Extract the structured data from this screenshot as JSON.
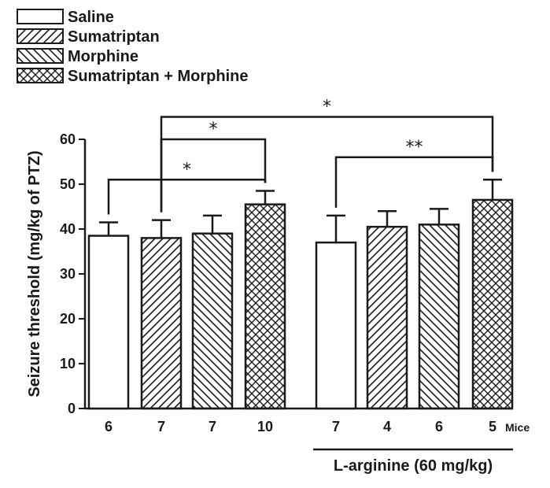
{
  "chart_data": {
    "type": "bar",
    "title": "",
    "xlabel": "",
    "ylabel": "Seizure threshold (mg/kg of PTZ)",
    "ylim": [
      0,
      60
    ],
    "yticks": [
      0,
      10,
      20,
      30,
      40,
      50,
      60
    ],
    "grid": false,
    "legend_position": "top-left",
    "legend": [
      {
        "name": "Saline",
        "pattern": "none"
      },
      {
        "name": "Sumatriptan",
        "pattern": "diagonal-up"
      },
      {
        "name": "Morphine",
        "pattern": "diagonal-down"
      },
      {
        "name": "Sumatriptan + Morphine",
        "pattern": "crosshatch"
      }
    ],
    "bars": [
      {
        "series": "Saline",
        "value": 38.5,
        "error": 3.0,
        "n": "6"
      },
      {
        "series": "Sumatriptan",
        "value": 38.0,
        "error": 4.0,
        "n": "7"
      },
      {
        "series": "Morphine",
        "value": 39.0,
        "error": 4.0,
        "n": "7"
      },
      {
        "series": "Sumatriptan + Morphine",
        "value": 45.5,
        "error": 3.0,
        "n": "10"
      },
      {
        "series": "Saline",
        "value": 37.0,
        "error": 6.0,
        "n": "7"
      },
      {
        "series": "Sumatriptan",
        "value": 40.5,
        "error": 3.5,
        "n": "4"
      },
      {
        "series": "Morphine",
        "value": 41.0,
        "error": 3.5,
        "n": "6"
      },
      {
        "series": "Sumatriptan + Morphine",
        "value": 46.5,
        "error": 4.5,
        "n": "5"
      }
    ],
    "n_suffix": "Mice",
    "group_label": "L-arginine (60 mg/kg)",
    "significance": [
      {
        "from": 1,
        "to": 4,
        "label": "*",
        "level": 51
      },
      {
        "from": 2,
        "to": 4,
        "label": "*",
        "level": 60
      },
      {
        "from": 2,
        "to": 8,
        "label": "*",
        "level": 65
      },
      {
        "from": 5,
        "to": 8,
        "label": "**",
        "level": 56
      }
    ],
    "colors": {
      "ink": "#1a1a1a",
      "fill": "#ffffff"
    }
  }
}
